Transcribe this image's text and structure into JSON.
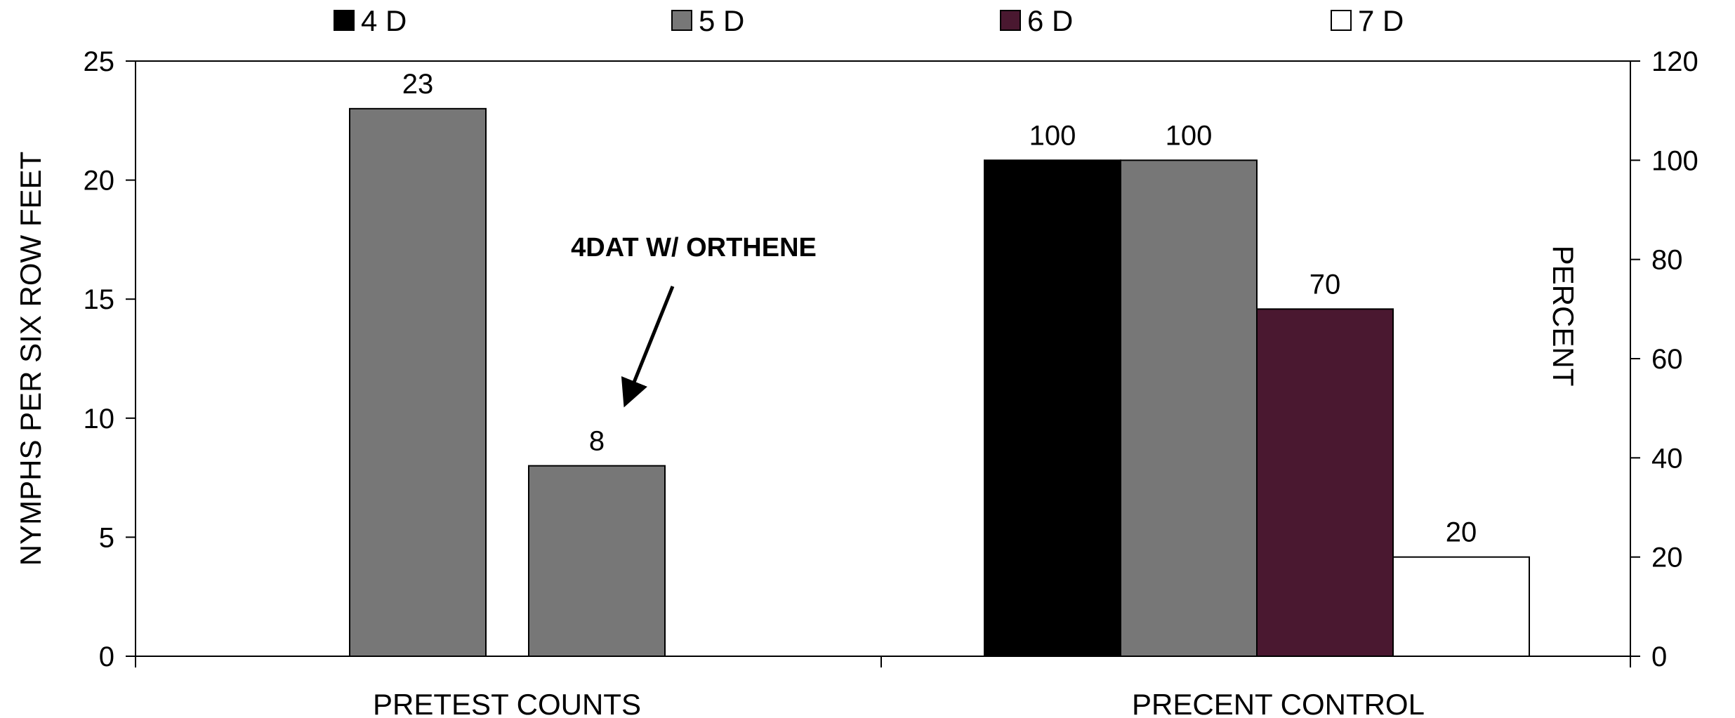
{
  "chart_data": {
    "type": "bar",
    "legend": {
      "position": "top",
      "entries": [
        {
          "name": "4 D",
          "color": "#000000"
        },
        {
          "name": "5 D",
          "color": "#777777"
        },
        {
          "name": "6 D",
          "color": "#4a1830"
        },
        {
          "name": "7 D",
          "color": "#ffffff"
        }
      ]
    },
    "left_axis": {
      "label": "NYMPHS PER SIX ROW FEET",
      "range": [
        0,
        25
      ],
      "ticks": [
        "0",
        "5",
        "10",
        "15",
        "20",
        "25"
      ]
    },
    "right_axis": {
      "label": "PERCENT",
      "range": [
        0,
        120
      ],
      "ticks": [
        "0",
        "20",
        "40",
        "60",
        "80",
        "100",
        "120"
      ]
    },
    "categories": [
      "PRETEST COUNTS",
      "PRECENT CONTROL"
    ],
    "groups": [
      {
        "category": "PRETEST COUNTS",
        "axis": "left",
        "bars": [
          {
            "series": "5 D",
            "value": 23,
            "label": "23"
          },
          {
            "series": "5 D",
            "value": 8,
            "label": "8"
          }
        ]
      },
      {
        "category": "PRECENT CONTROL",
        "axis": "right",
        "bars": [
          {
            "series": "4 D",
            "value": 100,
            "label": "100"
          },
          {
            "series": "5 D",
            "value": 100,
            "label": "100"
          },
          {
            "series": "6 D",
            "value": 70,
            "label": "70"
          },
          {
            "series": "7 D",
            "value": 20,
            "label": "20"
          }
        ]
      }
    ],
    "annotation": {
      "text": "4DAT W/ ORTHENE",
      "points_to": "8"
    },
    "grid": false
  }
}
